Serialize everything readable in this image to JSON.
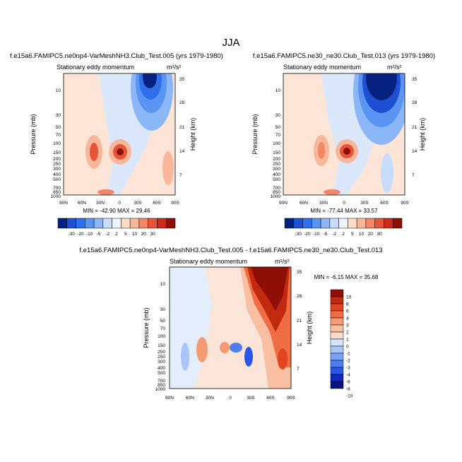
{
  "page_title": "JJA",
  "units_label": "m²/s²",
  "chart_data": [
    {
      "type": "heatmap",
      "id": "panel1",
      "title": "f.e15a6.FAMIPC5.ne0np4-VarMeshNH3.Club_Test.005 (yrs 1979-1980)",
      "subtitle": "Stationary eddy momentum",
      "units": "m²/s²",
      "xlabel": "",
      "ylabel": "Pressure (mb)",
      "ylabel_right": "Height (km)",
      "x_ticks": [
        "90N",
        "60N",
        "30N",
        "0",
        "30S",
        "60S",
        "90S"
      ],
      "y_ticks": [
        "10",
        "30",
        "50",
        "70",
        "100",
        "150",
        "200",
        "250",
        "300",
        "400",
        "500",
        "700",
        "850",
        "1000"
      ],
      "y_right_ticks": [
        "35",
        "28",
        "21",
        "14",
        "7"
      ],
      "stats": "MIN = -42.90  MAX = 29.46",
      "min": -42.9,
      "max": 29.46,
      "colorbar": {
        "orientation": "horizontal",
        "labels": [
          "-30",
          "-20",
          "-10",
          "-5",
          "-2",
          "2",
          "5",
          "10",
          "20",
          "30"
        ]
      }
    },
    {
      "type": "heatmap",
      "id": "panel2",
      "title": "f.e15a6.FAMIPC5.ne30_ne30.Club_Test.013 (yrs 1979-1980)",
      "subtitle": "Stationary eddy momentum",
      "units": "m²/s²",
      "xlabel": "",
      "ylabel": "Pressure (mb)",
      "ylabel_right": "Height (km)",
      "x_ticks": [
        "90N",
        "60N",
        "30N",
        "0",
        "30S",
        "60S",
        "90S"
      ],
      "y_ticks": [
        "10",
        "30",
        "50",
        "70",
        "100",
        "150",
        "200",
        "250",
        "300",
        "400",
        "500",
        "700",
        "850",
        "1000"
      ],
      "y_right_ticks": [
        "35",
        "28",
        "21",
        "14",
        "7"
      ],
      "stats": "MIN = -77.44  MAX = 33.57",
      "min": -77.44,
      "max": 33.57,
      "colorbar": {
        "orientation": "horizontal",
        "labels": [
          "-30",
          "-20",
          "-10",
          "-5",
          "-2",
          "2",
          "5",
          "10",
          "20",
          "30"
        ]
      }
    },
    {
      "type": "heatmap",
      "id": "panel3",
      "title": "f.e15a6.FAMIPC5.ne0np4-VarMeshNH3.Club_Test.005 - f.e15a6.FAMIPC5.ne30_ne30.Club_Test.013",
      "subtitle": "Stationary eddy momentum",
      "units": "m²/s²",
      "xlabel": "",
      "ylabel": "Pressure (mb)",
      "ylabel_right": "Height (km)",
      "x_ticks": [
        "90N",
        "60N",
        "30N",
        "0",
        "30S",
        "60S",
        "90S"
      ],
      "y_ticks": [
        "10",
        "30",
        "50",
        "70",
        "100",
        "150",
        "200",
        "250",
        "300",
        "400",
        "500",
        "700",
        "850",
        "1000"
      ],
      "y_right_ticks": [
        "35",
        "28",
        "21",
        "14",
        "7"
      ],
      "stats": "MIN = -6.15  MAX = 35.68",
      "min": -6.15,
      "max": 35.68,
      "colorbar": {
        "orientation": "vertical",
        "labels": [
          "10",
          "8",
          "6",
          "4",
          "3",
          "2",
          "1",
          "0",
          "-1",
          "-2",
          "-3",
          "-4",
          "-6",
          "-8",
          "-10"
        ]
      }
    }
  ],
  "colors": {
    "anom_colors": [
      "#07217f",
      "#1f4fd4",
      "#2f6fec",
      "#5b95f4",
      "#8bb6f8",
      "#c8dcfb",
      "#eef2fb",
      "#fcdcc7",
      "#f8b79b",
      "#f28665",
      "#e6553a",
      "#c92a19",
      "#8f0e06"
    ],
    "diff_colors": [
      "#07127f",
      "#0f28c0",
      "#2a55e8",
      "#4f7ef2",
      "#7aa2f7",
      "#a9c5fa",
      "#d4e3fc",
      "#fbdccb",
      "#f9bfa2",
      "#f59a72",
      "#ee6d44",
      "#e0451f",
      "#c12a0f",
      "#8f0e06"
    ]
  }
}
